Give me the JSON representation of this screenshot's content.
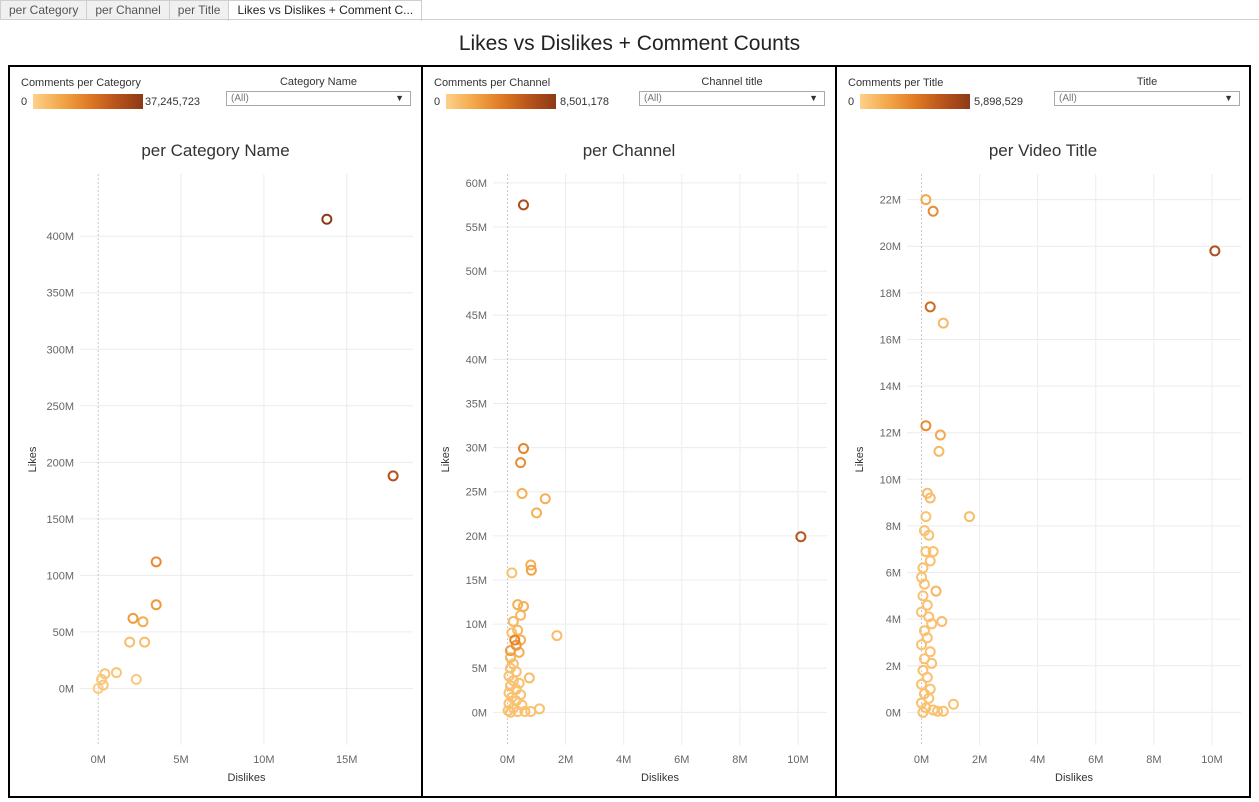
{
  "tabs": [
    {
      "label": "per Category",
      "active": false
    },
    {
      "label": "per Channel",
      "active": false
    },
    {
      "label": "per Title",
      "active": false
    },
    {
      "label": "Likes vs Dislikes + Comment C...",
      "active": true
    }
  ],
  "dashboard_title": "Likes vs Dislikes + Comment Counts",
  "colors": {
    "scale": [
      "#fdd18a",
      "#f3a849",
      "#e07b24",
      "#b9541c",
      "#8c3a17"
    ],
    "grid": "#ececec",
    "zero_line": "#c8c8c8",
    "axis_text": "#666666"
  },
  "panels": [
    {
      "legend_title": "Comments per Category",
      "legend_min": "0",
      "legend_max": "37,245,723",
      "filter_label": "Category Name",
      "filter_value": "(All)",
      "filter_icon": "dropdown-arrow-icon"
    },
    {
      "legend_title": "Comments per Channel",
      "legend_min": "0",
      "legend_max": "8,501,178",
      "filter_label": "Channel title",
      "filter_value": "(All)",
      "filter_icon": "dropdown-arrow-icon"
    },
    {
      "legend_title": "Comments per Title",
      "legend_min": "0",
      "legend_max": "5,898,529",
      "filter_label": "Title",
      "filter_value": "(All)",
      "filter_icon": "dropdown-arrow-icon"
    }
  ],
  "chart_data": [
    {
      "type": "scatter",
      "title": "per Category Name",
      "xlabel": "Dislikes",
      "ylabel": "Likes",
      "xlim": [
        -1.1,
        19
      ],
      "ylim": [
        -50,
        455
      ],
      "xticks": [
        {
          "v": 0,
          "label": "0M"
        },
        {
          "v": 5,
          "label": "5M"
        },
        {
          "v": 10,
          "label": "10M"
        },
        {
          "v": 15,
          "label": "15M"
        }
      ],
      "yticks": [
        {
          "v": 0,
          "label": "0M"
        },
        {
          "v": 50,
          "label": "50M"
        },
        {
          "v": 100,
          "label": "100M"
        },
        {
          "v": 150,
          "label": "150M"
        },
        {
          "v": 200,
          "label": "200M"
        },
        {
          "v": 250,
          "label": "250M"
        },
        {
          "v": 300,
          "label": "300M"
        },
        {
          "v": 350,
          "label": "350M"
        },
        {
          "v": 400,
          "label": "400M"
        }
      ],
      "points": [
        {
          "x": 13.8,
          "y": 415,
          "c": 1.0
        },
        {
          "x": 17.8,
          "y": 188,
          "c": 0.78
        },
        {
          "x": 3.5,
          "y": 112,
          "c": 0.4
        },
        {
          "x": 3.5,
          "y": 74,
          "c": 0.33
        },
        {
          "x": 2.1,
          "y": 62,
          "c": 0.32
        },
        {
          "x": 2.7,
          "y": 59,
          "c": 0.22
        },
        {
          "x": 1.9,
          "y": 41,
          "c": 0.12
        },
        {
          "x": 2.8,
          "y": 41,
          "c": 0.12
        },
        {
          "x": 1.1,
          "y": 14,
          "c": 0.08
        },
        {
          "x": 0.4,
          "y": 13,
          "c": 0.08
        },
        {
          "x": 0.2,
          "y": 8,
          "c": 0.05
        },
        {
          "x": 0.3,
          "y": 3,
          "c": 0.05
        },
        {
          "x": 0.0,
          "y": 0,
          "c": 0.03
        },
        {
          "x": 2.3,
          "y": 8,
          "c": 0.05
        }
      ]
    },
    {
      "type": "scatter",
      "title": "per Channel",
      "xlabel": "Dislikes",
      "ylabel": "Likes",
      "xlim": [
        -0.5,
        11
      ],
      "ylim": [
        -3.7,
        61
      ],
      "xticks": [
        {
          "v": 0,
          "label": "0M"
        },
        {
          "v": 2,
          "label": "2M"
        },
        {
          "v": 4,
          "label": "4M"
        },
        {
          "v": 6,
          "label": "6M"
        },
        {
          "v": 8,
          "label": "8M"
        },
        {
          "v": 10,
          "label": "10M"
        }
      ],
      "yticks": [
        {
          "v": 0,
          "label": "0M"
        },
        {
          "v": 5,
          "label": "5M"
        },
        {
          "v": 10,
          "label": "10M"
        },
        {
          "v": 15,
          "label": "15M"
        },
        {
          "v": 20,
          "label": "20M"
        },
        {
          "v": 25,
          "label": "25M"
        },
        {
          "v": 30,
          "label": "30M"
        },
        {
          "v": 35,
          "label": "35M"
        },
        {
          "v": 40,
          "label": "40M"
        },
        {
          "v": 45,
          "label": "45M"
        },
        {
          "v": 50,
          "label": "50M"
        },
        {
          "v": 55,
          "label": "55M"
        },
        {
          "v": 60,
          "label": "60M"
        }
      ],
      "points": [
        {
          "x": 0.55,
          "y": 57.5,
          "c": 0.82
        },
        {
          "x": 10.1,
          "y": 19.9,
          "c": 0.75
        },
        {
          "x": 0.55,
          "y": 29.9,
          "c": 0.45
        },
        {
          "x": 0.45,
          "y": 28.3,
          "c": 0.4
        },
        {
          "x": 0.5,
          "y": 24.8,
          "c": 0.2
        },
        {
          "x": 1.3,
          "y": 24.2,
          "c": 0.2
        },
        {
          "x": 1.0,
          "y": 22.6,
          "c": 0.2
        },
        {
          "x": 0.8,
          "y": 16.7,
          "c": 0.2
        },
        {
          "x": 0.82,
          "y": 16.1,
          "c": 0.28
        },
        {
          "x": 0.15,
          "y": 15.8,
          "c": 0.1
        },
        {
          "x": 0.35,
          "y": 12.2,
          "c": 0.2
        },
        {
          "x": 0.55,
          "y": 12.0,
          "c": 0.2
        },
        {
          "x": 0.45,
          "y": 11.0,
          "c": 0.15
        },
        {
          "x": 0.2,
          "y": 10.3,
          "c": 0.15
        },
        {
          "x": 0.35,
          "y": 9.3,
          "c": 0.15
        },
        {
          "x": 0.15,
          "y": 9.0,
          "c": 0.1
        },
        {
          "x": 1.7,
          "y": 8.7,
          "c": 0.12
        },
        {
          "x": 0.25,
          "y": 8.2,
          "c": 0.45
        },
        {
          "x": 0.45,
          "y": 8.2,
          "c": 0.2
        },
        {
          "x": 0.3,
          "y": 7.6,
          "c": 0.35
        },
        {
          "x": 0.1,
          "y": 7.0,
          "c": 0.3
        },
        {
          "x": 0.4,
          "y": 6.8,
          "c": 0.2
        },
        {
          "x": 0.1,
          "y": 6.2,
          "c": 0.15
        },
        {
          "x": 0.2,
          "y": 5.5,
          "c": 0.1
        },
        {
          "x": 0.1,
          "y": 5.0,
          "c": 0.1
        },
        {
          "x": 0.3,
          "y": 4.6,
          "c": 0.1
        },
        {
          "x": 0.05,
          "y": 4.1,
          "c": 0.1
        },
        {
          "x": 0.75,
          "y": 3.9,
          "c": 0.12
        },
        {
          "x": 0.2,
          "y": 3.6,
          "c": 0.1
        },
        {
          "x": 0.4,
          "y": 3.3,
          "c": 0.1
        },
        {
          "x": 0.1,
          "y": 3.0,
          "c": 0.1
        },
        {
          "x": 0.3,
          "y": 2.6,
          "c": 0.1
        },
        {
          "x": 0.05,
          "y": 2.2,
          "c": 0.1
        },
        {
          "x": 0.45,
          "y": 2.0,
          "c": 0.1
        },
        {
          "x": 0.15,
          "y": 1.7,
          "c": 0.1
        },
        {
          "x": 0.3,
          "y": 1.3,
          "c": 0.1
        },
        {
          "x": 0.05,
          "y": 1.0,
          "c": 0.1
        },
        {
          "x": 0.5,
          "y": 0.8,
          "c": 0.1
        },
        {
          "x": 0.2,
          "y": 0.5,
          "c": 0.1
        },
        {
          "x": 0.02,
          "y": 0.2,
          "c": 0.1
        },
        {
          "x": 0.35,
          "y": 0.1,
          "c": 0.1
        },
        {
          "x": 0.6,
          "y": 0.1,
          "c": 0.1
        },
        {
          "x": 0.8,
          "y": 0.1,
          "c": 0.1
        },
        {
          "x": 1.1,
          "y": 0.4,
          "c": 0.1
        },
        {
          "x": 0.1,
          "y": 0.0,
          "c": 0.1
        }
      ]
    },
    {
      "type": "scatter",
      "title": "per Video Title",
      "xlabel": "Dislikes",
      "ylabel": "Likes",
      "xlim": [
        -0.5,
        11
      ],
      "ylim": [
        -1.4,
        23.1
      ],
      "xticks": [
        {
          "v": 0,
          "label": "0M"
        },
        {
          "v": 2,
          "label": "2M"
        },
        {
          "v": 4,
          "label": "4M"
        },
        {
          "v": 6,
          "label": "6M"
        },
        {
          "v": 8,
          "label": "8M"
        },
        {
          "v": 10,
          "label": "10M"
        }
      ],
      "yticks": [
        {
          "v": 0,
          "label": "0M"
        },
        {
          "v": 2,
          "label": "2M"
        },
        {
          "v": 4,
          "label": "4M"
        },
        {
          "v": 6,
          "label": "6M"
        },
        {
          "v": 8,
          "label": "8M"
        },
        {
          "v": 10,
          "label": "10M"
        },
        {
          "v": 12,
          "label": "12M"
        },
        {
          "v": 14,
          "label": "14M"
        },
        {
          "v": 16,
          "label": "16M"
        },
        {
          "v": 18,
          "label": "18M"
        },
        {
          "v": 20,
          "label": "20M"
        },
        {
          "v": 22,
          "label": "22M"
        }
      ],
      "points": [
        {
          "x": 0.15,
          "y": 22.0,
          "c": 0.25
        },
        {
          "x": 0.4,
          "y": 21.5,
          "c": 0.4
        },
        {
          "x": 10.1,
          "y": 19.8,
          "c": 0.8
        },
        {
          "x": 0.3,
          "y": 17.4,
          "c": 0.6
        },
        {
          "x": 0.75,
          "y": 16.7,
          "c": 0.15
        },
        {
          "x": 0.15,
          "y": 12.3,
          "c": 0.4
        },
        {
          "x": 0.65,
          "y": 11.9,
          "c": 0.25
        },
        {
          "x": 0.6,
          "y": 11.2,
          "c": 0.15
        },
        {
          "x": 0.2,
          "y": 9.4,
          "c": 0.12
        },
        {
          "x": 0.3,
          "y": 9.2,
          "c": 0.12
        },
        {
          "x": 1.65,
          "y": 8.4,
          "c": 0.12
        },
        {
          "x": 0.15,
          "y": 8.4,
          "c": 0.1
        },
        {
          "x": 0.1,
          "y": 7.8,
          "c": 0.1
        },
        {
          "x": 0.25,
          "y": 7.6,
          "c": 0.1
        },
        {
          "x": 0.4,
          "y": 6.9,
          "c": 0.1
        },
        {
          "x": 0.15,
          "y": 6.9,
          "c": 0.1
        },
        {
          "x": 0.3,
          "y": 6.5,
          "c": 0.1
        },
        {
          "x": 0.05,
          "y": 6.2,
          "c": 0.1
        },
        {
          "x": 0.0,
          "y": 5.8,
          "c": 0.1
        },
        {
          "x": 0.1,
          "y": 5.5,
          "c": 0.1
        },
        {
          "x": 0.5,
          "y": 5.2,
          "c": 0.15
        },
        {
          "x": 0.05,
          "y": 5.0,
          "c": 0.1
        },
        {
          "x": 0.2,
          "y": 4.6,
          "c": 0.1
        },
        {
          "x": 0.0,
          "y": 4.3,
          "c": 0.1
        },
        {
          "x": 0.25,
          "y": 4.1,
          "c": 0.1
        },
        {
          "x": 0.7,
          "y": 3.9,
          "c": 0.12
        },
        {
          "x": 0.35,
          "y": 3.8,
          "c": 0.1
        },
        {
          "x": 0.1,
          "y": 3.5,
          "c": 0.1
        },
        {
          "x": 0.2,
          "y": 3.2,
          "c": 0.1
        },
        {
          "x": 0.0,
          "y": 2.9,
          "c": 0.1
        },
        {
          "x": 0.3,
          "y": 2.6,
          "c": 0.1
        },
        {
          "x": 0.1,
          "y": 2.3,
          "c": 0.1
        },
        {
          "x": 0.35,
          "y": 2.1,
          "c": 0.1
        },
        {
          "x": 0.05,
          "y": 1.8,
          "c": 0.1
        },
        {
          "x": 0.2,
          "y": 1.5,
          "c": 0.1
        },
        {
          "x": 0.0,
          "y": 1.2,
          "c": 0.1
        },
        {
          "x": 0.3,
          "y": 1.0,
          "c": 0.1
        },
        {
          "x": 0.1,
          "y": 0.8,
          "c": 0.1
        },
        {
          "x": 0.25,
          "y": 0.6,
          "c": 0.1
        },
        {
          "x": 0.0,
          "y": 0.4,
          "c": 0.1
        },
        {
          "x": 0.15,
          "y": 0.2,
          "c": 0.1
        },
        {
          "x": 0.4,
          "y": 0.1,
          "c": 0.1
        },
        {
          "x": 0.55,
          "y": 0.05,
          "c": 0.1
        },
        {
          "x": 0.75,
          "y": 0.05,
          "c": 0.1
        },
        {
          "x": 1.1,
          "y": 0.35,
          "c": 0.1
        },
        {
          "x": 0.05,
          "y": 0.0,
          "c": 0.1
        }
      ]
    }
  ]
}
